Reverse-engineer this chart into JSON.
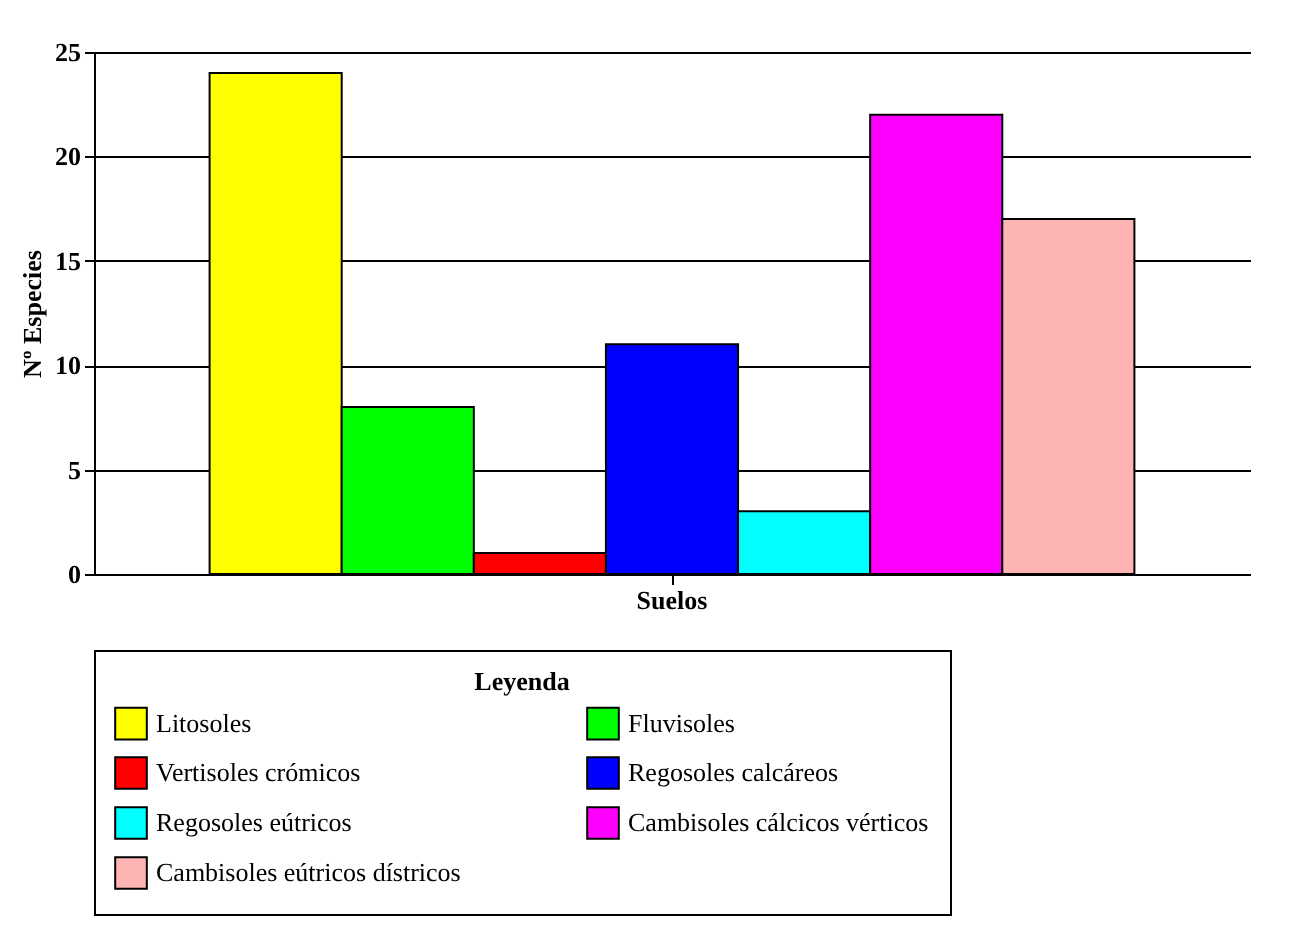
{
  "chart_data": {
    "type": "bar",
    "categories": [
      "Suelos"
    ],
    "ylabel": "Nº Especies",
    "legend_title": "Leyenda",
    "legend": "bottom",
    "grid": "y",
    "ylim": [
      0,
      25
    ],
    "yticks": [
      0,
      5,
      10,
      15,
      20,
      25
    ],
    "series": [
      {
        "name": "Litosoles",
        "color": "#ffff00",
        "values": [
          24
        ]
      },
      {
        "name": "Fluvisoles",
        "color": "#00ff00",
        "values": [
          8
        ]
      },
      {
        "name": "Vertisoles crómicos",
        "color": "#ff0000",
        "values": [
          1
        ]
      },
      {
        "name": "Regosoles calcáreos",
        "color": "#0000ff",
        "values": [
          11
        ]
      },
      {
        "name": "Regosoles eútricos",
        "color": "#00ffff",
        "values": [
          3
        ]
      },
      {
        "name": "Cambisoles cálcicos vérticos",
        "color": "#ff00ff",
        "values": [
          22
        ]
      },
      {
        "name": "Cambisoles eútricos dístricos",
        "color": "#ffb4b4",
        "values": [
          17
        ]
      }
    ]
  }
}
